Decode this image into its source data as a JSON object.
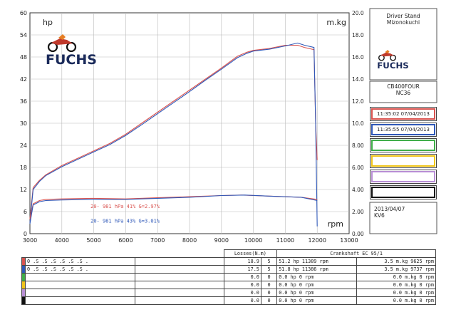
{
  "branding": {
    "brand": "FUCHS"
  },
  "side_panel": {
    "header_line1": "Driver Stand",
    "header_line2": "Mizonokuchi",
    "model": "CB400FOUR",
    "code": "NC36",
    "runs": [
      {
        "label": "11:35:02  07/04/2013",
        "color": "#d9534f"
      },
      {
        "label": "11:35:55  07/04/2013",
        "color": "#2f58b8"
      },
      {
        "label": "",
        "color": "#3fae49"
      },
      {
        "label": "",
        "color": "#f0c419"
      },
      {
        "label": "",
        "color": "#b98fd6"
      },
      {
        "label": "",
        "color": "#111111"
      }
    ],
    "footer_date": "2013/04/07",
    "footer_code": "KV6"
  },
  "chart_data": {
    "type": "line",
    "xlabel": "rpm",
    "ylabel_left": "hp",
    "ylabel_right": "m.kg",
    "xlim": [
      3000,
      13000
    ],
    "x_ticks": [
      "3000",
      "4000",
      "5000",
      "6000",
      "7000",
      "8000",
      "9000",
      "10000",
      "11000",
      "12000",
      "13000"
    ],
    "ylim_left": [
      0,
      60
    ],
    "y_ticks_left": [
      "0",
      "6",
      "12",
      "18",
      "24",
      "30",
      "36",
      "42",
      "48",
      "54",
      "60"
    ],
    "ylim_right": [
      0,
      20
    ],
    "y_ticks_right": [
      "0.00",
      "2.00",
      "4.00",
      "6.00",
      "8.00",
      "10.0",
      "12.0",
      "14.0",
      "16.0",
      "18.0",
      "20.0"
    ],
    "grid": true,
    "annotations": [
      {
        "text": "20-  981 hPa  41%    G=2.97%",
        "color": "#d9534f",
        "x": 4900,
        "y": 7.0
      },
      {
        "text": "20-  981 hPa  43%    G=3.01%",
        "color": "#2f58b8",
        "x": 4900,
        "y": 3.0
      }
    ],
    "series": [
      {
        "axis": "left",
        "color": "#d9534f",
        "x": [
          3000,
          3100,
          3300,
          3500,
          4000,
          4500,
          5000,
          5500,
          6000,
          6500,
          7000,
          7500,
          8000,
          8500,
          9000,
          9500,
          9800,
          10000,
          10500,
          11000,
          11389,
          11600,
          11900,
          11950,
          12000
        ],
        "values": [
          4,
          12.5,
          14.5,
          16,
          18.5,
          20.5,
          22.5,
          24.5,
          27,
          30,
          33,
          36,
          39,
          42,
          45,
          48.2,
          49.3,
          49.8,
          50.3,
          51.2,
          51.2,
          50.6,
          50,
          30,
          20
        ]
      },
      {
        "axis": "left",
        "color": "#2f58b8",
        "x": [
          3000,
          3100,
          3300,
          3500,
          4000,
          4500,
          5000,
          5500,
          6000,
          6500,
          7000,
          7500,
          8000,
          8500,
          9000,
          9500,
          9800,
          10000,
          10500,
          11000,
          11386,
          11600,
          11900,
          11950,
          12000
        ],
        "values": [
          3,
          12,
          14.2,
          15.8,
          18.2,
          20.2,
          22.2,
          24.2,
          26.7,
          29.6,
          32.6,
          35.6,
          38.6,
          41.7,
          44.7,
          47.8,
          49,
          49.6,
          50.1,
          51,
          51.8,
          51.2,
          50.6,
          30,
          2
        ]
      },
      {
        "axis": "right",
        "color": "#d9534f",
        "x": [
          3000,
          3100,
          3300,
          3500,
          4000,
          5000,
          6000,
          7000,
          8000,
          9000,
          9625,
          10500,
          11500,
          12000
        ],
        "values": [
          1.3,
          2.7,
          3.0,
          3.1,
          3.15,
          3.2,
          3.15,
          3.25,
          3.35,
          3.45,
          3.5,
          3.4,
          3.3,
          3.1
        ]
      },
      {
        "axis": "right",
        "color": "#2f58b8",
        "x": [
          3000,
          3100,
          3300,
          3500,
          4000,
          5000,
          6000,
          7000,
          8000,
          9000,
          9737,
          10500,
          11500,
          12000
        ],
        "values": [
          0.9,
          2.6,
          2.9,
          3.0,
          3.05,
          3.1,
          3.1,
          3.2,
          3.3,
          3.45,
          3.5,
          3.4,
          3.3,
          3.0
        ]
      }
    ]
  },
  "results_table": {
    "header": {
      "losses": "Losses(N.m)",
      "crankshaft": "Crankshaft EC 95/1"
    },
    "rows": [
      {
        "color": "#d9534f",
        "name": "0 .S .S .S .S .S .S .",
        "loss": "18.9",
        "n": "5",
        "power": "51.2 hp 11389 rpm",
        "torque": "3.5 m.kg 9625 rpm"
      },
      {
        "color": "#2f58b8",
        "name": "0 .S .S .S .S .S .S .",
        "loss": "17.5",
        "n": "5",
        "power": "51.8 hp 11386 rpm",
        "torque": "3.5 m.kg 9737 rpm"
      },
      {
        "color": "#3fae49",
        "name": "",
        "loss": "0.0",
        "n": "0",
        "power": "0.0 hp 0 rpm",
        "torque": "0.0 m.kg 0 rpm"
      },
      {
        "color": "#f0c419",
        "name": "",
        "loss": "0.0",
        "n": "0",
        "power": "0.0 hp 0 rpm",
        "torque": "0.0 m.kg 0 rpm"
      },
      {
        "color": "#b98fd6",
        "name": "",
        "loss": "0.0",
        "n": "0",
        "power": "0.0 hp 0 rpm",
        "torque": "0.0 m.kg 0 rpm"
      },
      {
        "color": "#111111",
        "name": "",
        "loss": "0.0",
        "n": "0",
        "power": "0.0 hp 0 rpm",
        "torque": "0.0 m.kg 0 rpm"
      }
    ]
  }
}
